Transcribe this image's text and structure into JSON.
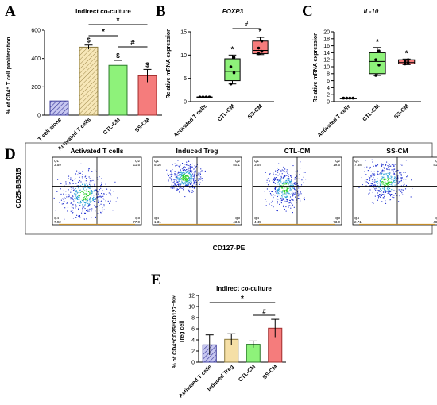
{
  "panels": {
    "A": "A",
    "B": "B",
    "C": "C",
    "D": "D",
    "E": "E"
  },
  "chart_data": [
    {
      "id": "A",
      "type": "bar",
      "title": "Indirect co-culture",
      "ylabel": "% of CD4⁺ T cell proliferation",
      "ylim": [
        0,
        600
      ],
      "yticks": [
        "0",
        "200",
        "400",
        "600"
      ],
      "categories": [
        "T cell alone",
        "Activated T cells",
        "CTL-CM",
        "SS-CM"
      ],
      "values": [
        100,
        480,
        352,
        278
      ],
      "errors": [
        0,
        15,
        35,
        45
      ],
      "colors": [
        "#b8b8ec",
        "#f5dfa6",
        "#8ef27a",
        "#f57c7c"
      ],
      "edges": [
        "#3c3c9c",
        "#8c7a3c",
        "#2c7a2c",
        "#a02c2c"
      ],
      "point_marks": [
        "",
        "$",
        "$",
        "$"
      ],
      "comparisons": [
        {
          "from": 1,
          "to": 2,
          "label": "*"
        },
        {
          "from": 1,
          "to": 3,
          "label": "*"
        },
        {
          "from": 2,
          "to": 3,
          "label": "#"
        }
      ]
    },
    {
      "id": "B",
      "type": "box",
      "title": "FOXP3",
      "ylabel": "Relative mRNA expression",
      "ylim": [
        0,
        15
      ],
      "yticks": [
        "0",
        "5",
        "10",
        "15"
      ],
      "categories": [
        "Activated T cells",
        "CTL-CM",
        "SS-CM"
      ],
      "boxes": [
        {
          "min": 1,
          "q1": 1,
          "median": 1,
          "q3": 1,
          "max": 1
        },
        {
          "min": 3.8,
          "q1": 4.5,
          "median": 6.5,
          "q3": 9.2,
          "max": 10
        },
        {
          "min": 10.1,
          "q1": 10.3,
          "median": 11,
          "q3": 13,
          "max": 13.8
        }
      ],
      "points": [
        [
          1,
          1,
          1,
          1
        ],
        [
          3.8,
          6.2,
          7.5,
          9.5
        ],
        [
          10.3,
          10.8,
          11.5,
          13
        ]
      ],
      "colors": [
        "#ffffff",
        "#8ef27a",
        "#f57c7c"
      ],
      "point_marks": [
        "",
        "*",
        "*"
      ],
      "comparisons": [
        {
          "from": 1,
          "to": 2,
          "label": "#"
        }
      ]
    },
    {
      "id": "C",
      "type": "box",
      "title": "IL-10",
      "ylabel": "Relative mRNA expression",
      "ylim": [
        0,
        20
      ],
      "yticks": [
        "0",
        "2",
        "4",
        "6",
        "8",
        "10",
        "12",
        "14",
        "16",
        "18",
        "20"
      ],
      "categories": [
        "Activated T cells",
        "CTL-CM",
        "SS-CM"
      ],
      "boxes": [
        {
          "min": 1,
          "q1": 1,
          "median": 1,
          "q3": 1,
          "max": 1
        },
        {
          "min": 7.5,
          "q1": 8,
          "median": 11.5,
          "q3": 14,
          "max": 15.5
        },
        {
          "min": 10.6,
          "q1": 10.8,
          "median": 11.2,
          "q3": 12,
          "max": 12.2
        }
      ],
      "points": [
        [
          1,
          1,
          1,
          1
        ],
        [
          7.5,
          10.5,
          12,
          14.5
        ],
        [
          10.8,
          11.2,
          11.6,
          12
        ]
      ],
      "colors": [
        "#ffffff",
        "#8ef27a",
        "#f57c7c"
      ],
      "point_marks": [
        "",
        "*",
        "*"
      ],
      "comparisons": []
    },
    {
      "id": "D",
      "type": "scatter",
      "xlabel": "CD127-PE",
      "ylabel": "CD25-BB515",
      "plots": [
        {
          "title": "Activated T cells",
          "q1": "3.59",
          "q2": "11.5",
          "q3": "77.0",
          "q4": "7.92"
        },
        {
          "title": "Induced Treg",
          "q1": "5.16",
          "q2": "50.1",
          "q3": "43.5",
          "q4": "1.31"
        },
        {
          "title": "CTL-CM",
          "q1": "3.04",
          "q2": "19.5",
          "q3": "73.0",
          "q4": "4.45"
        },
        {
          "title": "SS-CM",
          "q1": "7.58",
          "q2": "41.2",
          "q3": "48.5",
          "q4": "2.71"
        }
      ]
    },
    {
      "id": "E",
      "type": "bar",
      "title": "Indirect co-culture",
      "ylabel_line1": "% of CD4⁺CD25ʰⁱCD127⁻/ˡᵒʷ",
      "ylabel_line2": "Treg cell",
      "ylim": [
        0,
        12
      ],
      "yticks": [
        "0",
        "2",
        "4",
        "6",
        "8",
        "10",
        "12"
      ],
      "categories": [
        "Activated T cells",
        "Induced Treg",
        "CTL-CM",
        "SS-CM"
      ],
      "values": [
        3.1,
        4.1,
        3.2,
        6.1
      ],
      "errors": [
        1.8,
        1.0,
        0.6,
        1.6
      ],
      "colors": [
        "#b8b8ec",
        "#f5dfa6",
        "#8ef27a",
        "#f57c7c"
      ],
      "edges": [
        "#3c3c9c",
        "#8c7a3c",
        "#2c7a2c",
        "#a02c2c"
      ],
      "comparisons": [
        {
          "from": 0,
          "to": 3,
          "label": "*"
        },
        {
          "from": 2,
          "to": 3,
          "label": "#"
        }
      ]
    }
  ],
  "quadrant_names": [
    "Q1",
    "Q2",
    "Q3",
    "Q4"
  ]
}
